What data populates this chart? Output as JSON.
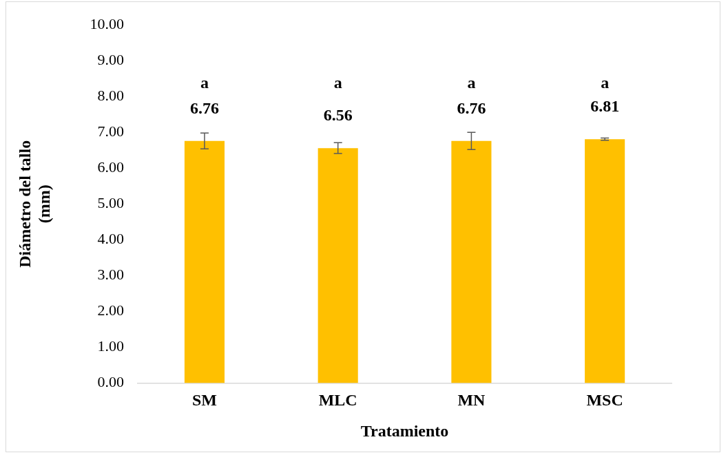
{
  "chart_data": {
    "type": "bar",
    "xlabel": "Tratamiento",
    "ylabel": "Diámetro del tallo (mm)",
    "categories": [
      "SM",
      "MLC",
      "MN",
      "MSC"
    ],
    "values": [
      6.76,
      6.56,
      6.76,
      6.81
    ],
    "errors": [
      0.22,
      0.15,
      0.24,
      0.03
    ],
    "color": "#ffc000",
    "ylim": [
      0,
      10
    ],
    "yticks": [
      {
        "value": 0,
        "label": "0.00"
      },
      {
        "value": 1,
        "label": "1.00"
      },
      {
        "value": 2,
        "label": "2.00"
      },
      {
        "value": 3,
        "label": "3.00"
      },
      {
        "value": 4,
        "label": "4.00"
      },
      {
        "value": 5,
        "label": "5.00"
      },
      {
        "value": 6,
        "label": "6.00"
      },
      {
        "value": 7,
        "label": "7.00"
      },
      {
        "value": 8,
        "label": "8.00"
      },
      {
        "value": 9,
        "label": "9.00"
      },
      {
        "value": 10,
        "label": "10.00"
      }
    ],
    "grid": false,
    "data_labels": true,
    "annotations": [
      "a",
      "a",
      "a",
      "a"
    ]
  }
}
